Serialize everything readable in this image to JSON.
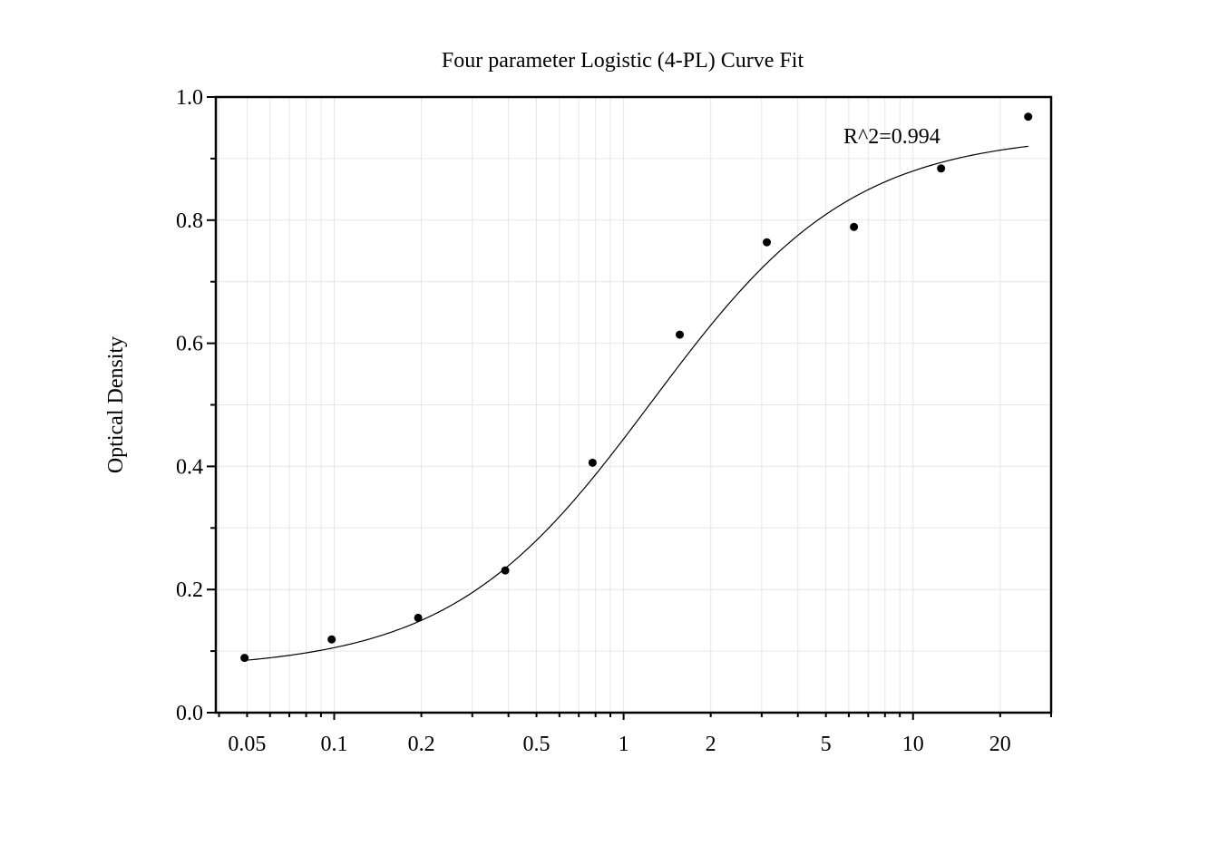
{
  "chart_data": {
    "type": "scatter",
    "title": "Four parameter Logistic (4-PL) Curve Fit",
    "xlabel": "",
    "ylabel": "Optical Density",
    "x_scale": "log",
    "xlim": [
      0.039,
      30
    ],
    "ylim": [
      0.0,
      1.0
    ],
    "x_ticks": [
      0.05,
      0.1,
      0.2,
      0.5,
      1,
      2,
      5,
      10,
      20
    ],
    "x_tick_labels": [
      "0.05",
      "0.1",
      "0.2",
      "0.5",
      "1",
      "2",
      "5",
      "10",
      "20"
    ],
    "y_ticks": [
      0.0,
      0.2,
      0.4,
      0.6,
      0.8,
      1.0
    ],
    "y_tick_labels": [
      "0.0",
      "0.2",
      "0.4",
      "0.6",
      "0.8",
      "1.0"
    ],
    "grid": true,
    "annotation": "R^2=0.994",
    "points": {
      "x": [
        0.049,
        0.098,
        0.195,
        0.39,
        0.781,
        1.563,
        3.125,
        6.25,
        12.5,
        25
      ],
      "y": [
        0.089,
        0.119,
        0.154,
        0.231,
        0.406,
        0.614,
        0.764,
        0.789,
        0.884,
        0.968
      ]
    },
    "fit_curve": {
      "model": "4PL",
      "bottom": 0.07,
      "top": 0.94,
      "ec50": 1.25,
      "hill": 1.25,
      "x_range": [
        0.049,
        25
      ]
    },
    "colors": {
      "points": "#000000",
      "curve": "#000000",
      "grid": "#e6e6e6",
      "axis": "#000000"
    }
  }
}
